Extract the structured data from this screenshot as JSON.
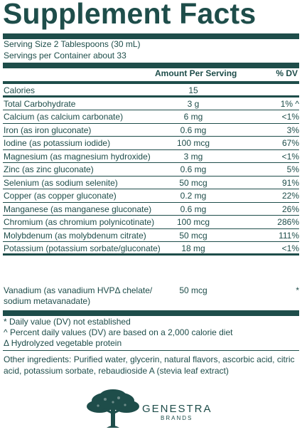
{
  "title": "Supplement Facts",
  "serving_size": "Serving Size 2 Tablespoons (30 mL)",
  "servings_per_container": "Servings per Container about 33",
  "header": {
    "amount": "Amount Per Serving",
    "dv": "% DV"
  },
  "rows": [
    {
      "name": "Calories",
      "amount": "15",
      "dv": ""
    },
    {
      "name": "Total Carbohydrate",
      "amount": "3 g",
      "dv": "1% ^"
    },
    {
      "name": "Calcium (as calcium carbonate)",
      "amount": "6 mg",
      "dv": "<1%"
    },
    {
      "name": "Iron (as iron gluconate)",
      "amount": "0.6 mg",
      "dv": "3%"
    },
    {
      "name": "Iodine (as potassium iodide)",
      "amount": "100 mcg",
      "dv": "67%"
    },
    {
      "name": "Magnesium (as magnesium hydroxide)",
      "amount": "3 mg",
      "dv": "<1%"
    },
    {
      "name": "Zinc (as zinc gluconate)",
      "amount": "0.6 mg",
      "dv": "5%"
    },
    {
      "name": "Selenium (as sodium selenite)",
      "amount": "50 mcg",
      "dv": "91%"
    },
    {
      "name": "Copper (as copper gluconate)",
      "amount": "0.2 mg",
      "dv": "22%"
    },
    {
      "name": "Manganese (as manganese gluconate)",
      "amount": "0.6 mg",
      "dv": "26%"
    },
    {
      "name": "Chromium (as chromium polynicotinate)",
      "amount": "100 mcg",
      "dv": "286%"
    },
    {
      "name": "Molybdenum (as molybdenum citrate)",
      "amount": "50 mcg",
      "dv": "111%"
    },
    {
      "name": "Potassium (potassium sorbate/gluconate)",
      "amount": "18 mg",
      "dv": "<1%"
    }
  ],
  "vanadium": {
    "name_line1": "Vanadium (as vanadium HVPΔ chelate/",
    "name_line2": "sodium metavanadate)",
    "amount": "50 mcg",
    "dv": "*"
  },
  "footnotes": [
    "* Daily value (DV) not established",
    "^ Percent daily values (DV) are based on a 2,000 calorie diet",
    "Δ Hydrolyzed vegetable protein"
  ],
  "other_ingredients": "Other ingredients: Purified water, glycerin, natural flavors, ascorbic acid, citric acid, potassium sorbate, rebaudioside A (stevia leaf extract)",
  "brand": {
    "name": "GENESTRA",
    "sub": "BRANDS",
    "logo": "tree-logo",
    "color": "#1e4d4a"
  }
}
